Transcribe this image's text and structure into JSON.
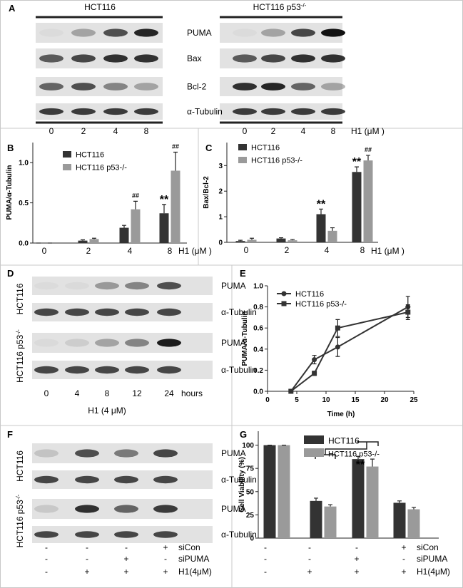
{
  "panel_labels": {
    "a": "A",
    "b": "B",
    "c": "C",
    "d": "D",
    "e": "E",
    "f": "F",
    "g": "G"
  },
  "blot_a": {
    "groups": [
      {
        "title": "HCT116"
      },
      {
        "title": "HCT116 p53",
        "title_sup": "-/-"
      }
    ],
    "proteins": [
      "PUMA",
      "Bax",
      "Bcl-2",
      "α-Tubulin"
    ],
    "lanes": [
      "0",
      "2",
      "4",
      "8"
    ],
    "lane_unit": "H1 (μM )"
  },
  "blot_d": {
    "rows": [
      {
        "cell_line": "HCT116",
        "proteins": [
          "PUMA",
          "α-Tubulin"
        ]
      },
      {
        "cell_line": "HCT116 p53",
        "cell_line_sup": "-/-",
        "proteins": [
          "PUMA",
          "α-Tubulin"
        ]
      }
    ],
    "lanes": [
      "0",
      "4",
      "8",
      "12",
      "24"
    ],
    "lane_unit": "hours",
    "treatment": "H1 (4 μM)"
  },
  "blot_f": {
    "rows": [
      {
        "cell_line": "HCT116",
        "proteins": [
          "PUMA",
          "α-Tubulin"
        ]
      },
      {
        "cell_line": "HCT116 p53",
        "cell_line_sup": "-/-",
        "proteins": [
          "PUMA",
          "α-Tubulin"
        ]
      }
    ],
    "conditions": [
      {
        "name": "siCon",
        "signs": [
          "-",
          "-",
          "-",
          "+"
        ]
      },
      {
        "name": "siPUMA",
        "signs": [
          "-",
          "-",
          "+",
          "-"
        ]
      },
      {
        "name": "H1(4μM)",
        "signs": [
          "-",
          "+",
          "+",
          "+"
        ]
      }
    ]
  },
  "chart_data": [
    {
      "type": "bar",
      "y_label": "PUMA/α-Tubulin",
      "x_label": "H1 (μM )",
      "categories": [
        "0",
        "2",
        "4",
        "8"
      ],
      "series": [
        {
          "name": "HCT116",
          "color": "#333333",
          "values": [
            0,
            0.03,
            0.19,
            0.37
          ],
          "errors": [
            0,
            0.01,
            0.03,
            0.11
          ]
        },
        {
          "name": "HCT116 p53-/-",
          "color": "#9a9a9a",
          "values": [
            0,
            0.05,
            0.42,
            0.9
          ],
          "errors": [
            0,
            0.01,
            0.1,
            0.23
          ]
        }
      ],
      "ylim": [
        0,
        1.25
      ],
      "yticks": [
        {
          "value": 0,
          "label": "0.0"
        },
        {
          "value": 0.5,
          "label": "0.5"
        },
        {
          "value": 1,
          "label": "1.0"
        }
      ],
      "annotations": [
        "**",
        "##",
        "##"
      ]
    },
    {
      "type": "bar",
      "y_label": "Bax/Bcl-2",
      "x_label": "H1 (μM )",
      "categories": [
        "0",
        "2",
        "4",
        "8"
      ],
      "series": [
        {
          "name": "HCT116",
          "color": "#333333",
          "values": [
            0.05,
            0.15,
            1.1,
            2.75
          ],
          "errors": [
            0.03,
            0.03,
            0.2,
            0.2
          ]
        },
        {
          "name": "HCT116 p53-/-",
          "color": "#9a9a9a",
          "values": [
            0.1,
            0.08,
            0.45,
            3.2
          ],
          "errors": [
            0.06,
            0.03,
            0.12,
            0.2
          ]
        }
      ],
      "ylim": [
        0,
        3.9
      ],
      "yticks": [
        0,
        1,
        2,
        3
      ],
      "annotations": [
        "**",
        "**",
        "##"
      ]
    },
    {
      "type": "line",
      "y_label": "PUMA/α-Tubulin",
      "x_label": "Time (h)",
      "series": [
        {
          "name": "HCT116",
          "marker": "circle",
          "color": "#333333",
          "x": [
            4,
            8,
            12,
            24
          ],
          "values": [
            0,
            0.3,
            0.42,
            0.8
          ],
          "errors": [
            0,
            0.04,
            0.09,
            0.1
          ]
        },
        {
          "name": "HCT116 p53-/-",
          "marker": "square",
          "color": "#333333",
          "x": [
            4,
            8,
            12,
            24
          ],
          "values": [
            0,
            0.17,
            0.6,
            0.75
          ],
          "errors": [
            0,
            0.02,
            0.08,
            0.07
          ]
        }
      ],
      "xlim": [
        0,
        25
      ],
      "xticks": [
        0,
        5,
        10,
        15,
        20,
        25
      ],
      "ylim": [
        0,
        1
      ],
      "yticks": [
        {
          "value": 0,
          "label": "0.0"
        },
        {
          "value": 0.2,
          "label": "0.2"
        },
        {
          "value": 0.4,
          "label": "0.4"
        },
        {
          "value": 0.6,
          "label": "0.6"
        },
        {
          "value": 0.8,
          "label": "0.8"
        },
        {
          "value": 1,
          "label": "1.0"
        }
      ]
    },
    {
      "type": "bar",
      "y_label": "Cell Viability (%)",
      "categories": [
        null,
        null,
        null,
        null
      ],
      "series": [
        {
          "name": "HCT116",
          "color": "#333333",
          "values": [
            100,
            40,
            85,
            38
          ],
          "errors": [
            0,
            3,
            3,
            2
          ]
        },
        {
          "name": "HCT116 p53-/-",
          "color": "#9a9a9a",
          "values": [
            100,
            34,
            77,
            31
          ],
          "errors": [
            0,
            2,
            8,
            2
          ]
        }
      ],
      "ylim": [
        0,
        115
      ],
      "yticks": [
        0,
        25,
        50,
        75,
        100
      ],
      "annotations": [
        "**"
      ],
      "conditions": [
        {
          "name": "siCon",
          "signs": [
            "-",
            "-",
            "-",
            "+"
          ]
        },
        {
          "name": "siPUMA",
          "signs": [
            "-",
            "-",
            "+",
            "-"
          ]
        },
        {
          "name": "H1(4μM)",
          "signs": [
            "-",
            "+",
            "+",
            "+"
          ]
        }
      ]
    }
  ]
}
